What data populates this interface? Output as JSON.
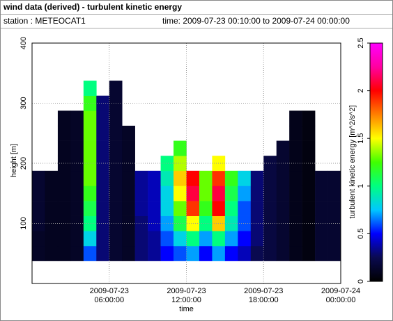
{
  "header": {
    "title": "wind data (derived) - turbulent kinetic energy",
    "station": "station : METEOCAT1",
    "time": "time: 2009-07-23 00:10:00 to 2009-07-24 00:00:00"
  },
  "chart_data": {
    "type": "heatmap",
    "xlabel": "time",
    "ylabel": "height [m]",
    "zlabel": "turbulent kinetic energy [m^2/s^2]",
    "x": [
      "2009-07-23 00:00:00",
      "2009-07-23 01:00:00",
      "2009-07-23 02:00:00",
      "2009-07-23 03:00:00",
      "2009-07-23 04:00:00",
      "2009-07-23 05:00:00",
      "2009-07-23 06:00:00",
      "2009-07-23 07:00:00",
      "2009-07-23 08:00:00",
      "2009-07-23 09:00:00",
      "2009-07-23 10:00:00",
      "2009-07-23 11:00:00",
      "2009-07-23 12:00:00",
      "2009-07-23 13:00:00",
      "2009-07-23 14:00:00",
      "2009-07-23 15:00:00",
      "2009-07-23 16:00:00",
      "2009-07-23 17:00:00",
      "2009-07-23 18:00:00",
      "2009-07-23 19:00:00",
      "2009-07-23 20:00:00",
      "2009-07-23 21:00:00",
      "2009-07-23 22:00:00",
      "2009-07-23 23:00:00",
      "2009-07-24 00:00:00"
    ],
    "y": [
      37.5,
      62.5,
      87.5,
      112.5,
      137.5,
      162.5,
      187.5,
      212.5,
      237.5,
      262.5,
      287.5,
      312.5,
      337.5
    ],
    "values": [
      [
        0.12,
        0.1,
        0.1,
        0.12,
        0.6,
        0.3,
        0.15,
        0.12,
        0.3,
        0.35,
        0.5,
        0.6,
        0.7,
        0.5,
        0.7,
        0.5,
        0.4,
        0.25,
        0.2,
        0.15,
        0.08,
        0.05,
        0.15,
        0.15
      ],
      [
        0.12,
        0.1,
        0.1,
        0.12,
        0.8,
        0.3,
        0.15,
        0.12,
        0.3,
        0.35,
        0.6,
        0.8,
        1.0,
        0.7,
        1.0,
        0.7,
        0.5,
        0.3,
        0.2,
        0.15,
        0.08,
        0.05,
        0.15,
        0.15
      ],
      [
        0.15,
        0.1,
        0.1,
        0.12,
        1.0,
        0.3,
        0.15,
        0.12,
        0.3,
        0.4,
        0.7,
        1.1,
        1.5,
        1.0,
        1.6,
        0.9,
        0.6,
        0.3,
        0.2,
        0.15,
        0.08,
        0.05,
        0.15,
        0.15
      ],
      [
        0.15,
        0.1,
        0.1,
        0.12,
        1.1,
        0.3,
        0.15,
        0.12,
        0.35,
        0.4,
        0.8,
        1.3,
        1.9,
        1.2,
        2.0,
        1.0,
        0.6,
        0.3,
        0.2,
        0.15,
        0.08,
        0.05,
        0.15,
        0.15
      ],
      [
        0.15,
        0.1,
        0.1,
        0.12,
        1.2,
        0.3,
        0.15,
        0.12,
        0.35,
        0.4,
        0.8,
        1.5,
        2.1,
        1.3,
        2.1,
        1.1,
        0.7,
        0.3,
        0.2,
        0.15,
        0.08,
        0.05,
        0.15,
        0.15
      ],
      [
        0.15,
        0.1,
        0.1,
        0.12,
        1.3,
        0.3,
        0.15,
        0.12,
        0.35,
        0.4,
        0.9,
        1.6,
        2.0,
        1.3,
        1.9,
        1.2,
        0.8,
        0.3,
        0.2,
        0.15,
        0.08,
        0.05,
        0.15,
        0.15
      ],
      [
        null,
        null,
        0.1,
        0.12,
        1.3,
        0.3,
        0.15,
        0.12,
        null,
        null,
        1.0,
        1.4,
        null,
        null,
        1.5,
        null,
        null,
        null,
        0.2,
        0.15,
        0.08,
        0.05,
        null,
        null
      ],
      [
        null,
        null,
        0.1,
        0.12,
        1.3,
        0.3,
        0.15,
        0.12,
        null,
        null,
        null,
        1.2,
        null,
        null,
        null,
        null,
        null,
        null,
        null,
        0.15,
        0.08,
        0.05,
        null,
        null
      ],
      [
        null,
        null,
        0.1,
        0.12,
        1.3,
        0.3,
        0.15,
        0.12,
        null,
        null,
        null,
        null,
        null,
        null,
        null,
        null,
        null,
        null,
        null,
        null,
        0.08,
        0.05,
        null,
        null
      ],
      [
        null,
        null,
        0.1,
        0.12,
        1.3,
        0.3,
        0.15,
        null,
        null,
        null,
        null,
        null,
        null,
        null,
        null,
        null,
        null,
        null,
        null,
        null,
        0.08,
        0.05,
        null,
        null
      ],
      [
        null,
        null,
        null,
        null,
        1.2,
        0.3,
        0.15,
        null,
        null,
        null,
        null,
        null,
        null,
        null,
        null,
        null,
        null,
        null,
        null,
        null,
        null,
        null,
        null,
        null
      ],
      [
        null,
        null,
        null,
        null,
        1.0,
        null,
        0.15,
        null,
        null,
        null,
        null,
        null,
        null,
        null,
        null,
        null,
        null,
        null,
        null,
        null,
        null,
        null,
        null,
        null
      ]
    ],
    "xlim": [
      "2009-07-23 00:00:00",
      "2009-07-24 00:00:00"
    ],
    "xticks": [
      "2009-07-23 06:00:00",
      "2009-07-23 12:00:00",
      "2009-07-23 18:00:00",
      "2009-07-24 00:00:00"
    ],
    "ylim": [
      0,
      400
    ],
    "yticks": [
      100,
      200,
      300,
      400
    ],
    "zlim": [
      0,
      2.5
    ],
    "zticks": [
      0,
      0.5,
      1,
      1.5,
      2,
      2.5
    ],
    "colormap": [
      "#000000",
      "#0a0a50",
      "#0000ff",
      "#00c8ff",
      "#00ff80",
      "#40ff00",
      "#ffff00",
      "#ff8000",
      "#ff0000",
      "#ff00a0",
      "#ff00ff"
    ],
    "grid": true
  }
}
